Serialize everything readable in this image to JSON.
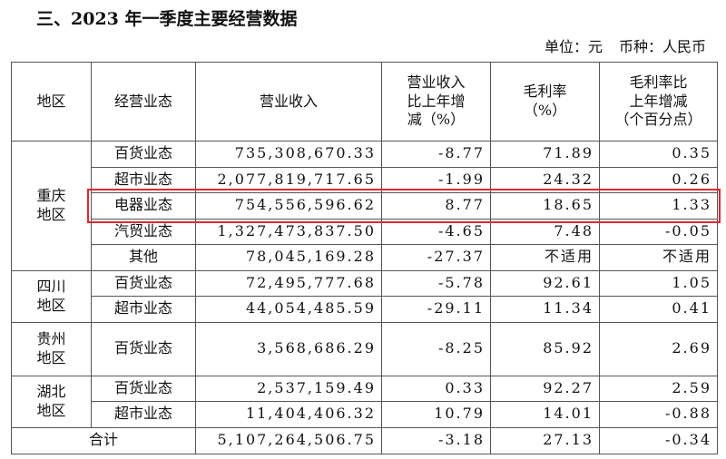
{
  "title": "三、2023 年一季度主要经营数据",
  "unit": "单位：元",
  "currency": "币种：人民币",
  "table": {
    "columns": [
      "地区",
      "经营业态",
      "营业收入",
      "营业收入\n比上年增\n减（%）",
      "毛利率\n（%）",
      "毛利率比\n上年增减\n（个百分点）"
    ],
    "groups": [
      {
        "region": "重庆\n地区",
        "rows": [
          [
            "百货业态",
            "735,308,670.33",
            "-8.77",
            "71.89",
            "0.35"
          ],
          [
            "超市业态",
            "2,077,819,717.65",
            "-1.99",
            "24.32",
            "0.26"
          ],
          [
            "电器业态",
            "754,556,596.62",
            "8.77",
            "18.65",
            "1.33"
          ],
          [
            "汽贸业态",
            "1,327,473,837.50",
            "-4.65",
            "7.48",
            "-0.05"
          ],
          [
            "其他",
            "78,045,169.28",
            "-27.37",
            "不适用",
            "不适用"
          ]
        ]
      },
      {
        "region": "四川\n地区",
        "rows": [
          [
            "百货业态",
            "72,495,777.68",
            "-5.78",
            "92.61",
            "1.05"
          ],
          [
            "超市业态",
            "44,054,485.59",
            "-29.11",
            "11.34",
            "0.41"
          ]
        ]
      },
      {
        "region": "贵州\n地区",
        "rows": [
          [
            "百货业态",
            "3,568,686.29",
            "-8.25",
            "85.92",
            "2.69"
          ]
        ]
      },
      {
        "region": "湖北\n地区",
        "rows": [
          [
            "百货业态",
            "2,537,159.49",
            "0.33",
            "92.27",
            "2.59"
          ],
          [
            "超市业态",
            "11,404,406.32",
            "10.79",
            "14.01",
            "-0.88"
          ]
        ]
      }
    ],
    "total": {
      "label": "合计",
      "cells": [
        "5,107,264,506.75",
        "-3.18",
        "27.13",
        "-0.34"
      ]
    }
  }
}
